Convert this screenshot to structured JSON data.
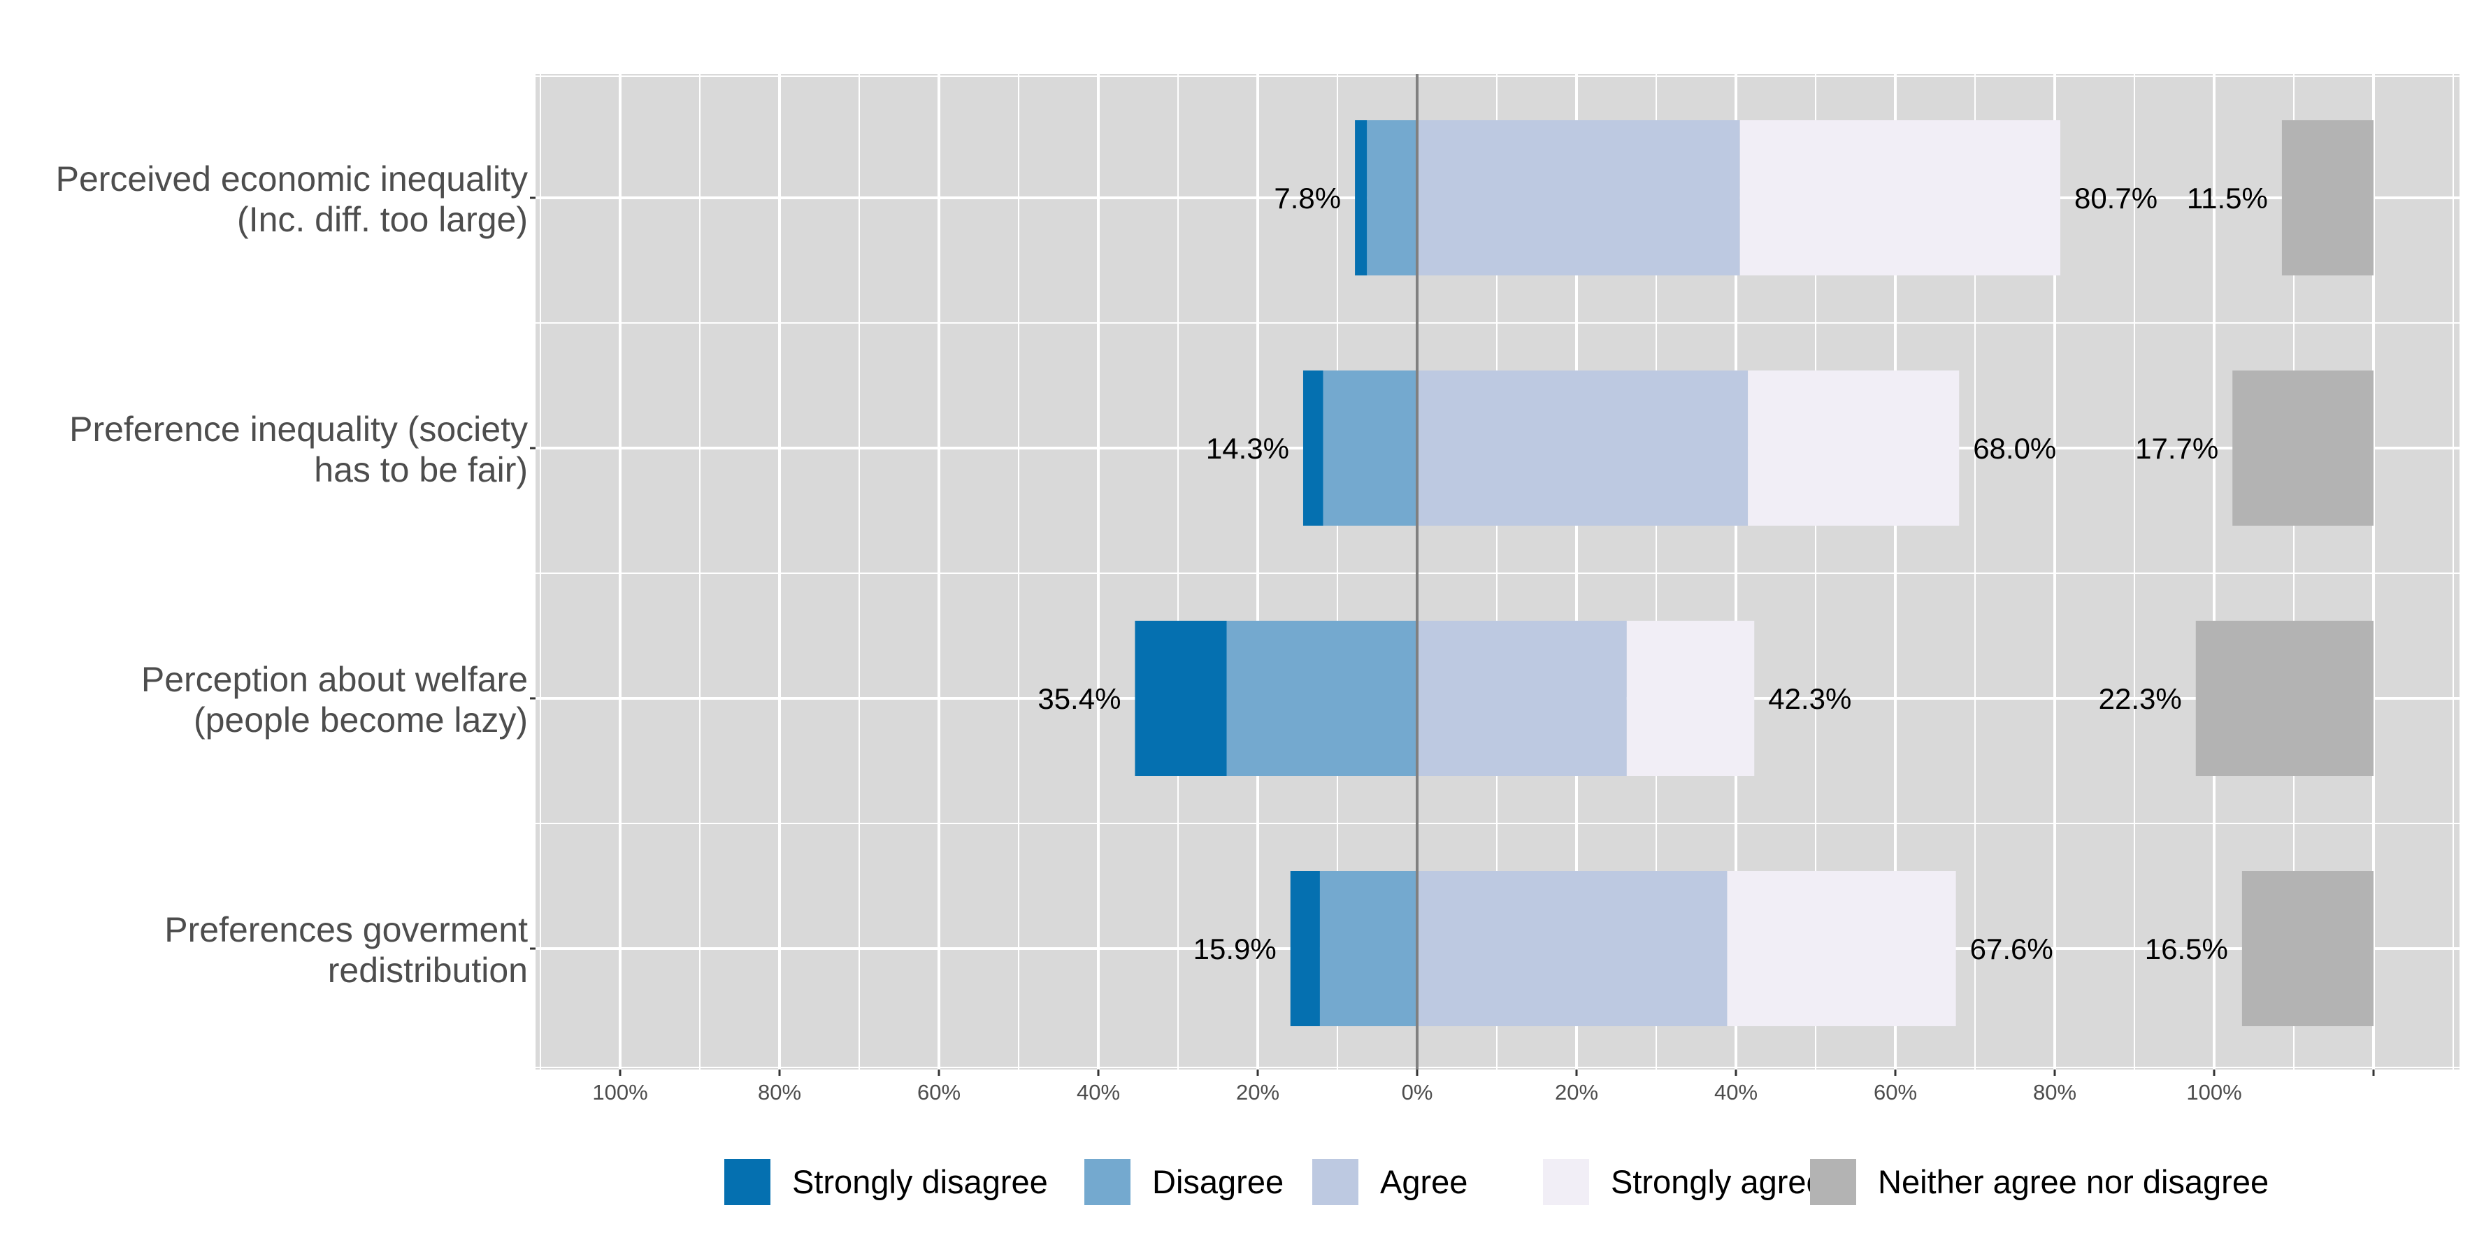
{
  "chart_data": {
    "type": "bar",
    "orientation": "horizontal",
    "stacked": "diverging",
    "grid": true,
    "legend_position": "bottom",
    "categories": [
      "Perceived economic inequality\n(Inc. diff. too large)",
      "Preference inequality (society\nhas to be fair)",
      "Perception about welfare\n(people become lazy)",
      "Preferences goverment\nredistribution"
    ],
    "series": [
      {
        "name": "Strongly disagree",
        "color": "#0570b0",
        "side": "negative",
        "values": [
          1.5,
          2.5,
          11.5,
          3.7
        ]
      },
      {
        "name": "Disagree",
        "color": "#74a9cf",
        "side": "negative",
        "values": [
          6.3,
          11.8,
          23.9,
          12.2
        ]
      },
      {
        "name": "Agree",
        "color": "#bdc9e1",
        "side": "positive",
        "values": [
          40.5,
          41.5,
          26.3,
          38.9
        ]
      },
      {
        "name": "Strongly agree",
        "color": "#f1eef6",
        "side": "positive",
        "values": [
          40.2,
          26.5,
          16.0,
          28.7
        ]
      },
      {
        "name": "Neither agree nor disagree",
        "color": "#b3b3b3",
        "side": "separate",
        "values": [
          11.5,
          17.7,
          22.3,
          16.5
        ]
      }
    ],
    "data_labels": {
      "negative": [
        "7.8%",
        "14.3%",
        "35.4%",
        "15.9%"
      ],
      "positive": [
        "80.7%",
        "68.0%",
        "42.3%",
        "67.6%"
      ],
      "neutral": [
        "11.5%",
        "17.7%",
        "22.3%",
        "16.5%"
      ]
    },
    "x_tick_labels": [
      "100%",
      "80%",
      "60%",
      "40%",
      "20%",
      "0%",
      "20%",
      "40%",
      "60%",
      "80%",
      "100%"
    ],
    "x_ticks": [
      -100,
      -80,
      -60,
      -40,
      -20,
      0,
      20,
      40,
      60,
      80,
      100
    ],
    "xlim": [
      -110,
      130
    ],
    "neutral_right_edge": 120,
    "title": "",
    "xlabel": "",
    "ylabel": ""
  }
}
